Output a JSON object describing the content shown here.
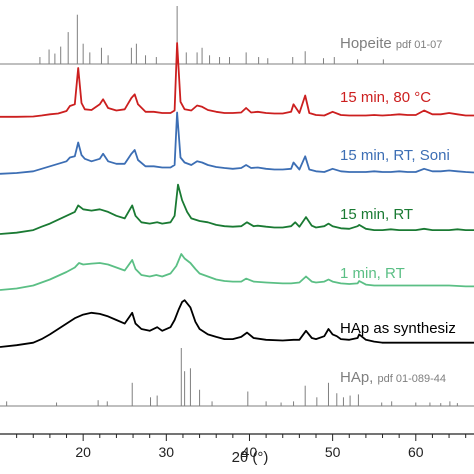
{
  "chart_data": {
    "type": "line",
    "title": "",
    "xlabel": "2θ (°)",
    "ylabel": "",
    "xlim": [
      10,
      67
    ],
    "x_ticks": [
      20,
      30,
      40,
      50,
      60
    ],
    "y_axis": "stacked intensity, no tick labels",
    "grid": false,
    "legend": "labels placed right of each pattern",
    "reference_patterns": [
      {
        "name": "Hopeite",
        "card": "pdf 01-07",
        "color": "#7f7f7f",
        "peaks": [
          {
            "x": 14.8,
            "h": 0.12
          },
          {
            "x": 15.9,
            "h": 0.25
          },
          {
            "x": 16.6,
            "h": 0.18
          },
          {
            "x": 17.3,
            "h": 0.3
          },
          {
            "x": 18.2,
            "h": 0.55
          },
          {
            "x": 19.3,
            "h": 0.85
          },
          {
            "x": 20.0,
            "h": 0.35
          },
          {
            "x": 20.8,
            "h": 0.2
          },
          {
            "x": 22.2,
            "h": 0.28
          },
          {
            "x": 23.0,
            "h": 0.15
          },
          {
            "x": 25.8,
            "h": 0.28
          },
          {
            "x": 26.4,
            "h": 0.35
          },
          {
            "x": 27.5,
            "h": 0.15
          },
          {
            "x": 28.8,
            "h": 0.12
          },
          {
            "x": 31.3,
            "h": 1.0
          },
          {
            "x": 32.4,
            "h": 0.2
          },
          {
            "x": 33.7,
            "h": 0.2
          },
          {
            "x": 34.3,
            "h": 0.28
          },
          {
            "x": 35.2,
            "h": 0.15
          },
          {
            "x": 36.4,
            "h": 0.12
          },
          {
            "x": 37.6,
            "h": 0.12
          },
          {
            "x": 39.6,
            "h": 0.2
          },
          {
            "x": 41.1,
            "h": 0.12
          },
          {
            "x": 42.2,
            "h": 0.1
          },
          {
            "x": 45.2,
            "h": 0.12
          },
          {
            "x": 46.7,
            "h": 0.22
          },
          {
            "x": 48.9,
            "h": 0.1
          },
          {
            "x": 50.2,
            "h": 0.12
          },
          {
            "x": 53.0,
            "h": 0.08
          },
          {
            "x": 56.1,
            "h": 0.08
          }
        ]
      },
      {
        "name": "HAp,",
        "card": "pdf 01-089-44",
        "color": "#7f7f7f",
        "peaks": [
          {
            "x": 10.8,
            "h": 0.08
          },
          {
            "x": 16.8,
            "h": 0.06
          },
          {
            "x": 21.8,
            "h": 0.1
          },
          {
            "x": 22.9,
            "h": 0.08
          },
          {
            "x": 25.9,
            "h": 0.4
          },
          {
            "x": 28.1,
            "h": 0.15
          },
          {
            "x": 28.9,
            "h": 0.18
          },
          {
            "x": 31.8,
            "h": 1.0
          },
          {
            "x": 32.2,
            "h": 0.6
          },
          {
            "x": 32.9,
            "h": 0.65
          },
          {
            "x": 34.0,
            "h": 0.28
          },
          {
            "x": 35.5,
            "h": 0.08
          },
          {
            "x": 39.8,
            "h": 0.25
          },
          {
            "x": 42.0,
            "h": 0.08
          },
          {
            "x": 43.8,
            "h": 0.06
          },
          {
            "x": 45.3,
            "h": 0.08
          },
          {
            "x": 46.7,
            "h": 0.35
          },
          {
            "x": 48.1,
            "h": 0.15
          },
          {
            "x": 49.5,
            "h": 0.4
          },
          {
            "x": 50.5,
            "h": 0.22
          },
          {
            "x": 51.3,
            "h": 0.15
          },
          {
            "x": 52.1,
            "h": 0.18
          },
          {
            "x": 53.1,
            "h": 0.2
          },
          {
            "x": 55.9,
            "h": 0.06
          },
          {
            "x": 57.1,
            "h": 0.08
          },
          {
            "x": 60.0,
            "h": 0.06
          },
          {
            "x": 61.7,
            "h": 0.06
          },
          {
            "x": 63.0,
            "h": 0.05
          },
          {
            "x": 64.1,
            "h": 0.08
          },
          {
            "x": 65.0,
            "h": 0.05
          }
        ]
      }
    ],
    "series": [
      {
        "name": "15 min, 80 °C",
        "color": "#cc1f1f",
        "x": [
          10,
          12,
          14,
          15,
          16,
          17,
          18,
          18.4,
          19,
          19.4,
          19.8,
          20.2,
          21,
          22,
          22.4,
          23,
          24,
          25,
          25.8,
          26.2,
          26.6,
          27.5,
          28.5,
          29.5,
          30.5,
          31,
          31.3,
          31.7,
          32.2,
          33,
          33.7,
          34.3,
          35,
          36,
          37,
          38,
          39,
          39.6,
          40.2,
          41,
          42,
          43,
          44,
          45,
          45.3,
          46,
          46.7,
          47.2,
          48,
          49,
          50,
          51,
          52,
          53,
          54,
          55,
          56,
          57,
          58,
          59,
          60,
          61,
          62,
          63,
          64,
          65,
          66,
          67
        ],
        "y": [
          0.05,
          0.05,
          0.06,
          0.1,
          0.15,
          0.18,
          0.28,
          0.48,
          0.55,
          2.0,
          0.6,
          0.35,
          0.32,
          0.55,
          0.75,
          0.4,
          0.3,
          0.35,
          0.8,
          0.95,
          0.55,
          0.25,
          0.25,
          0.2,
          0.2,
          0.3,
          3.0,
          0.65,
          0.35,
          0.3,
          0.5,
          0.45,
          0.32,
          0.25,
          0.2,
          0.2,
          0.22,
          0.4,
          0.22,
          0.25,
          0.2,
          0.18,
          0.18,
          0.25,
          0.55,
          0.2,
          0.9,
          0.2,
          0.12,
          0.1,
          0.25,
          0.12,
          0.1,
          0.1,
          0.1,
          0.12,
          0.1,
          0.12,
          0.15,
          0.12,
          0.12,
          0.3,
          0.15,
          0.15,
          0.2,
          0.15,
          0.1,
          0.1
        ]
      },
      {
        "name": "15 min, RT, Soni",
        "color": "#3c6eb4",
        "x": [
          10,
          12,
          14,
          15,
          16,
          17,
          18,
          18.4,
          19,
          19.4,
          19.8,
          20.2,
          21,
          22,
          22.4,
          23,
          24,
          25,
          25.8,
          26.2,
          26.6,
          27.5,
          28.5,
          29.5,
          30.5,
          31,
          31.3,
          31.7,
          32.2,
          33,
          33.7,
          34.3,
          35,
          36,
          37,
          38,
          39,
          39.6,
          40.2,
          41,
          42,
          43,
          44,
          45,
          45.3,
          46,
          46.7,
          47.2,
          48,
          49,
          50,
          51,
          52,
          53,
          54,
          55,
          56,
          57,
          58,
          59,
          60,
          61,
          62,
          63,
          64,
          65,
          66,
          67
        ],
        "y": [
          0.05,
          0.08,
          0.15,
          0.25,
          0.35,
          0.45,
          0.55,
          0.7,
          0.75,
          1.3,
          0.8,
          0.65,
          0.55,
          0.65,
          0.85,
          0.55,
          0.45,
          0.45,
          0.85,
          1.0,
          0.6,
          0.35,
          0.35,
          0.3,
          0.3,
          0.4,
          2.5,
          0.7,
          0.5,
          0.4,
          0.55,
          0.5,
          0.4,
          0.32,
          0.28,
          0.25,
          0.28,
          0.4,
          0.28,
          0.3,
          0.25,
          0.22,
          0.22,
          0.25,
          0.5,
          0.22,
          0.75,
          0.22,
          0.15,
          0.12,
          0.25,
          0.15,
          0.12,
          0.12,
          0.12,
          0.15,
          0.12,
          0.12,
          0.15,
          0.12,
          0.12,
          0.25,
          0.15,
          0.15,
          0.18,
          0.15,
          0.12,
          0.1
        ]
      },
      {
        "name": "15 min, RT",
        "color": "#1a7a33",
        "x": [
          10,
          12,
          14,
          15,
          16,
          17,
          18,
          19,
          19.4,
          20,
          21,
          22,
          23,
          24,
          25,
          25.9,
          26.3,
          27,
          28,
          28.9,
          29.5,
          30.5,
          31,
          31.4,
          31.9,
          32.5,
          33,
          34,
          35,
          36,
          37,
          38,
          39,
          39.7,
          40.5,
          41,
          42,
          43,
          44,
          45,
          45.5,
          46,
          46.8,
          47.5,
          48,
          49,
          49.5,
          50,
          51,
          52,
          53,
          53.2,
          54,
          55,
          56,
          57,
          58,
          59,
          60,
          61,
          62,
          63,
          64,
          65,
          66,
          67
        ],
        "y": [
          0.0,
          0.05,
          0.15,
          0.28,
          0.4,
          0.55,
          0.7,
          0.85,
          1.1,
          0.95,
          0.9,
          0.95,
          0.85,
          0.7,
          0.6,
          1.1,
          0.7,
          0.45,
          0.4,
          0.45,
          0.4,
          0.45,
          0.7,
          1.9,
          1.3,
          0.85,
          0.6,
          0.5,
          0.45,
          0.35,
          0.3,
          0.28,
          0.3,
          0.45,
          0.3,
          0.32,
          0.28,
          0.25,
          0.25,
          0.3,
          0.45,
          0.28,
          0.65,
          0.32,
          0.25,
          0.3,
          0.4,
          0.3,
          0.22,
          0.2,
          0.3,
          0.35,
          0.2,
          0.15,
          0.15,
          0.18,
          0.15,
          0.15,
          0.15,
          0.2,
          0.15,
          0.15,
          0.15,
          0.18,
          0.15,
          0.15
        ]
      },
      {
        "name": "1 min, RT",
        "color": "#5bbf85",
        "x": [
          10,
          12,
          14,
          16,
          18,
          19,
          19.5,
          20,
          21,
          22,
          23,
          24,
          25,
          25.9,
          26.3,
          27,
          28,
          28.8,
          29.5,
          30.5,
          31.2,
          31.8,
          32.2,
          32.9,
          33.5,
          34,
          35,
          36,
          37,
          38,
          39,
          39.6,
          40.5,
          42,
          44,
          45,
          46,
          46.8,
          47.5,
          48,
          49,
          49.5,
          50,
          51,
          52,
          53,
          53.2,
          54,
          55,
          56,
          58,
          60,
          62,
          64,
          66,
          67
        ],
        "y": [
          0.0,
          0.05,
          0.15,
          0.35,
          0.6,
          0.75,
          0.9,
          0.85,
          0.88,
          0.9,
          0.85,
          0.75,
          0.65,
          1.0,
          0.7,
          0.5,
          0.45,
          0.5,
          0.45,
          0.55,
          0.8,
          1.2,
          1.05,
          0.9,
          0.7,
          0.55,
          0.45,
          0.35,
          0.3,
          0.28,
          0.28,
          0.38,
          0.28,
          0.25,
          0.22,
          0.22,
          0.25,
          0.45,
          0.28,
          0.25,
          0.28,
          0.35,
          0.28,
          0.22,
          0.2,
          0.22,
          0.3,
          0.18,
          0.15,
          0.15,
          0.15,
          0.15,
          0.15,
          0.15,
          0.12,
          0.12
        ]
      },
      {
        "name": "HAp as synthesiz",
        "color": "#000000",
        "x": [
          10,
          12,
          14,
          15,
          16,
          17,
          18,
          19,
          20,
          21,
          22,
          23,
          24,
          25,
          25.9,
          26.3,
          27,
          28,
          28.9,
          29.5,
          30.5,
          31,
          31.5,
          31.9,
          32.2,
          32.9,
          33.5,
          34,
          35,
          36,
          37,
          38,
          39,
          39.7,
          40.5,
          42,
          44,
          45.3,
          46,
          46.8,
          47.5,
          48,
          49,
          49.5,
          50,
          50.5,
          51,
          52,
          53,
          53.2,
          54,
          55,
          56,
          57,
          58,
          59,
          60,
          61,
          62,
          63,
          64,
          65,
          66,
          67
        ],
        "y": [
          0.0,
          0.05,
          0.12,
          0.22,
          0.35,
          0.5,
          0.65,
          0.8,
          0.9,
          0.95,
          0.92,
          0.85,
          0.75,
          0.65,
          0.95,
          0.65,
          0.5,
          0.45,
          0.55,
          0.45,
          0.55,
          0.75,
          1.05,
          1.25,
          1.3,
          1.1,
          0.7,
          0.5,
          0.35,
          0.28,
          0.22,
          0.22,
          0.28,
          0.4,
          0.25,
          0.2,
          0.18,
          0.2,
          0.2,
          0.45,
          0.25,
          0.22,
          0.3,
          0.5,
          0.35,
          0.3,
          0.22,
          0.2,
          0.25,
          0.35,
          0.2,
          0.15,
          0.12,
          0.12,
          0.12,
          0.12,
          0.12,
          0.12,
          0.12,
          0.12,
          0.12,
          0.12,
          0.12,
          0.12
        ]
      }
    ]
  }
}
